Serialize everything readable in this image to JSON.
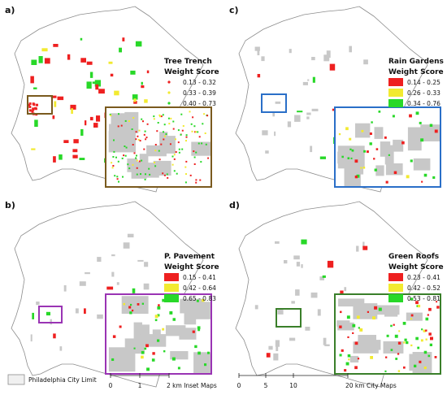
{
  "colors": {
    "red": "#ee2020",
    "yellow": "#f2ea30",
    "green": "#28d828",
    "gray_block": "#c8c8c8",
    "city_outline": "#8c8c8c",
    "box_a": "#7a5a1e",
    "box_b": "#9a34b4",
    "box_c": "#2a6fc8",
    "box_d": "#3a7f2a"
  },
  "panels": [
    {
      "key": "a",
      "label": "a)",
      "legend_title_1": "Tree Trench",
      "legend_title_2": "Weight Score",
      "legend_style": "dots",
      "classes": [
        {
          "range": "0.13 - 0.32",
          "color": "red"
        },
        {
          "range": "0.33 - 0.39",
          "color": "yellow"
        },
        {
          "range": "0.40 - 0.73",
          "color": "green"
        }
      ],
      "box_color": "box_a"
    },
    {
      "key": "c",
      "label": "c)",
      "legend_title_1": "Rain Gardens",
      "legend_title_2": "Weight Score",
      "legend_style": "patches",
      "classes": [
        {
          "range": "0.14 - 0.25",
          "color": "red"
        },
        {
          "range": "0.26 - 0.33",
          "color": "yellow"
        },
        {
          "range": "0.34 - 0.76",
          "color": "green"
        }
      ],
      "box_color": "box_c"
    },
    {
      "key": "b",
      "label": "b)",
      "legend_title_1": "P. Pavement",
      "legend_title_2": "Weight Score",
      "legend_style": "patches",
      "classes": [
        {
          "range": "0.15 - 0.41",
          "color": "red"
        },
        {
          "range": "0.42 - 0.64",
          "color": "yellow"
        },
        {
          "range": "0.65 - 0.83",
          "color": "green"
        }
      ],
      "box_color": "box_b"
    },
    {
      "key": "d",
      "label": "d)",
      "legend_title_1": "Green Roofs",
      "legend_title_2": "Weight Score",
      "legend_style": "patches",
      "classes": [
        {
          "range": "0.23 - 0.41",
          "color": "red"
        },
        {
          "range": "0.42 - 0.52",
          "color": "yellow"
        },
        {
          "range": "0.53 - 0.81",
          "color": "green"
        }
      ],
      "box_color": "box_d"
    }
  ],
  "legend_bottom": {
    "city_limit": "Philadelphia City Limit",
    "inset_scale_ticks": [
      "0",
      "1",
      "2 km Inset Maps"
    ],
    "city_scale_ticks": [
      "0",
      "5",
      "10",
      "20 km City Maps"
    ]
  }
}
